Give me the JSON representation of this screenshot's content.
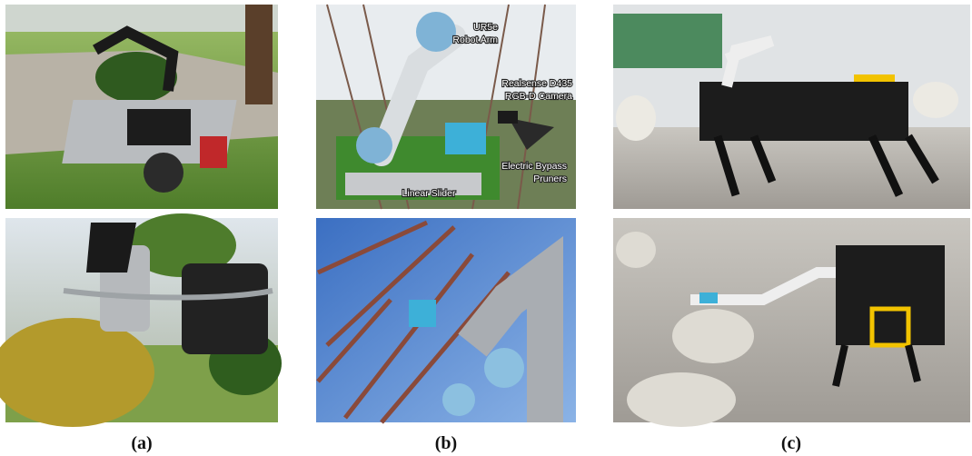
{
  "panels": [
    {
      "caption": "(a)"
    },
    {
      "caption": "(b)",
      "annotations": [
        [
          "UR5e",
          "Robot Arm"
        ],
        [
          "Realsense D435",
          "RGB-D Camera"
        ],
        [
          "Electric Bypass",
          "Pruners"
        ],
        [
          "Linear Slider"
        ]
      ]
    },
    {
      "caption": "(c)"
    }
  ]
}
